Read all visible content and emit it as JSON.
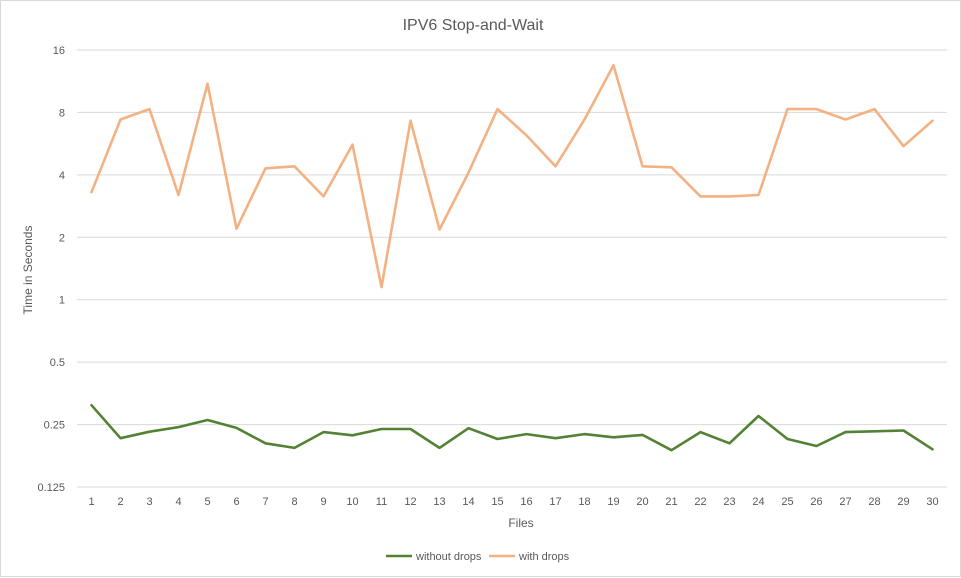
{
  "chart_data": {
    "type": "line",
    "title": "IPV6 Stop-and-Wait",
    "xlabel": "Files",
    "ylabel": "Time in Seconds",
    "y_scale": "log2",
    "ylim": [
      0.125,
      16
    ],
    "y_ticks": [
      "0.125",
      "0.25",
      "0.5",
      "1",
      "2",
      "4",
      "8",
      "16"
    ],
    "categories": [
      "1",
      "2",
      "3",
      "4",
      "5",
      "6",
      "7",
      "8",
      "9",
      "10",
      "11",
      "12",
      "13",
      "14",
      "15",
      "16",
      "17",
      "18",
      "19",
      "20",
      "21",
      "22",
      "23",
      "24",
      "25",
      "26",
      "27",
      "28",
      "29",
      "30"
    ],
    "grid": true,
    "legend_position": "bottom",
    "series": [
      {
        "name": "without drops",
        "color": "#548235",
        "values": [
          0.31,
          0.215,
          0.231,
          0.243,
          0.263,
          0.241,
          0.203,
          0.193,
          0.23,
          0.222,
          0.238,
          0.238,
          0.193,
          0.24,
          0.213,
          0.225,
          0.215,
          0.225,
          0.217,
          0.223,
          0.188,
          0.23,
          0.203,
          0.275,
          0.213,
          0.197,
          0.23,
          0.232,
          0.234,
          0.19
        ]
      },
      {
        "name": "with drops",
        "color": "#F4B183",
        "values": [
          3.3,
          7.4,
          8.3,
          3.2,
          11.0,
          2.2,
          4.3,
          4.4,
          3.15,
          5.6,
          1.15,
          7.3,
          2.18,
          4.1,
          8.3,
          6.2,
          4.4,
          7.4,
          13.5,
          4.4,
          4.35,
          3.15,
          3.15,
          3.2,
          8.3,
          8.3,
          7.4,
          8.3,
          5.5,
          7.3
        ]
      }
    ]
  }
}
